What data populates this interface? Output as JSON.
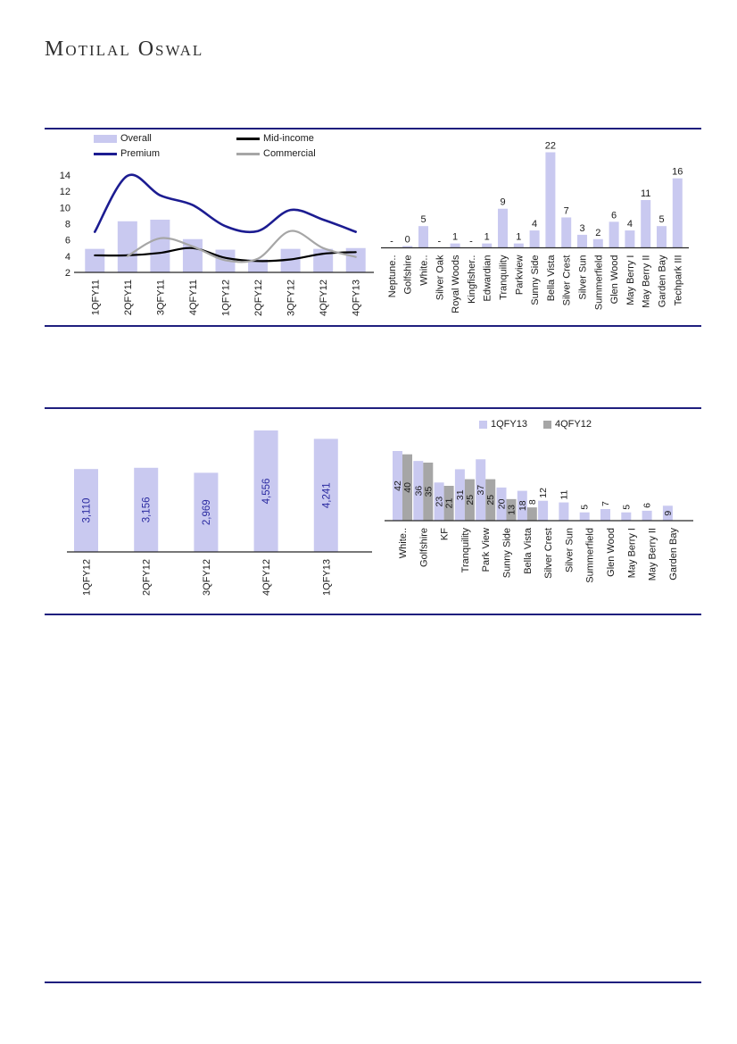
{
  "page": {
    "logo": "Motilal Oswal",
    "colors": {
      "rule": "#1f1f7e",
      "bar_lavender": "#c9c9f0",
      "line_navy": "#1c1c91",
      "line_black": "#000000",
      "line_gray": "#a6a6a6",
      "label_navy": "#2a2aa0",
      "text": "#1a1a1a"
    }
  },
  "chart_data": [
    {
      "id": "quarterly-trend-combo",
      "type": "bar-line-combo",
      "categories": [
        "1QFY11",
        "2QFY11",
        "3QFY11",
        "4QFY11",
        "1QFY12",
        "2QFY12",
        "3QFY12",
        "4QFY12",
        "4QFY13"
      ],
      "bar_series": {
        "name": "Overall",
        "color": "#c9c9f0",
        "values": [
          4.9,
          8.3,
          8.5,
          6.1,
          4.8,
          3.6,
          4.9,
          4.9,
          5.0
        ]
      },
      "line_series": [
        {
          "name": "Premium",
          "color": "#1c1c91",
          "values": [
            7.0,
            13.9,
            11.5,
            10.3,
            7.7,
            7.1,
            9.7,
            8.5,
            7.0
          ]
        },
        {
          "name": "Mid-income",
          "color": "#000000",
          "values": [
            4.1,
            4.1,
            4.4,
            5.0,
            3.8,
            3.4,
            3.6,
            4.3,
            4.5
          ]
        },
        {
          "name": "Commercial",
          "color": "#a6a6a6",
          "values": [
            null,
            4.0,
            6.2,
            5.2,
            3.5,
            3.7,
            7.1,
            5.0,
            3.9
          ]
        }
      ],
      "ylim": [
        2,
        14
      ],
      "yticks": [
        2,
        4,
        6,
        8,
        10,
        12,
        14
      ],
      "grid": false,
      "legend_position": "top"
    },
    {
      "id": "project-quarter-bars",
      "type": "bar",
      "categories": [
        "Neptune..",
        "Golfshire",
        "White..",
        "Silver Oak",
        "Royal Woods",
        "Kingfisher..",
        "Edwardian",
        "Tranquility",
        "Parkview",
        "Sunny Side",
        "Bella Vista",
        "Silver Crest",
        "Silver Sun",
        "Summerfield",
        "Glen Wood",
        "May Berry I",
        "May Berry II",
        "Garden Bay",
        "Techpark III"
      ],
      "values": [
        null,
        0,
        5,
        null,
        1,
        null,
        1,
        9,
        1,
        4,
        22,
        7,
        3,
        2,
        6,
        4,
        11,
        5,
        16
      ],
      "null_label": "-",
      "bar_color": "#c9c9f0",
      "ylim": [
        0,
        24
      ],
      "data_labels": "above"
    },
    {
      "id": "quarterly-totals",
      "type": "bar",
      "categories": [
        "1QFY12",
        "2QFY12",
        "3QFY12",
        "4QFY12",
        "1QFY13"
      ],
      "values": [
        3110,
        3156,
        2969,
        4556,
        4241
      ],
      "labels": [
        "3,110",
        "3,156",
        "2,969",
        "4,556",
        "4,241"
      ],
      "bar_color": "#c9c9f0",
      "label_color": "#2a2aa0",
      "ylim": [
        0,
        5000
      ],
      "data_labels": "inside-rotated"
    },
    {
      "id": "project-sales-grouped",
      "type": "grouped-bar",
      "categories": [
        "White..",
        "Golfshire",
        "KF",
        "Tranquility",
        "Park View",
        "Sunny Side",
        "Bella Vista",
        "Silver Crest",
        "Silver Sun",
        "Summerfield",
        "Glen Wood",
        "May Berry I",
        "May Berry II",
        "Garden Bay"
      ],
      "series": [
        {
          "name": "1QFY13",
          "color": "#c9c9f0",
          "values": [
            42,
            36,
            23,
            31,
            37,
            20,
            18,
            12,
            11,
            5,
            7,
            5,
            6,
            9
          ]
        },
        {
          "name": "4QFY12",
          "color": "#a6a6a6",
          "values": [
            40,
            35,
            21,
            25,
            25,
            13,
            8,
            null,
            null,
            null,
            null,
            null,
            null,
            null
          ]
        }
      ],
      "ylim": [
        0,
        46
      ],
      "legend_position": "top",
      "data_labels": "center-rotated"
    }
  ]
}
